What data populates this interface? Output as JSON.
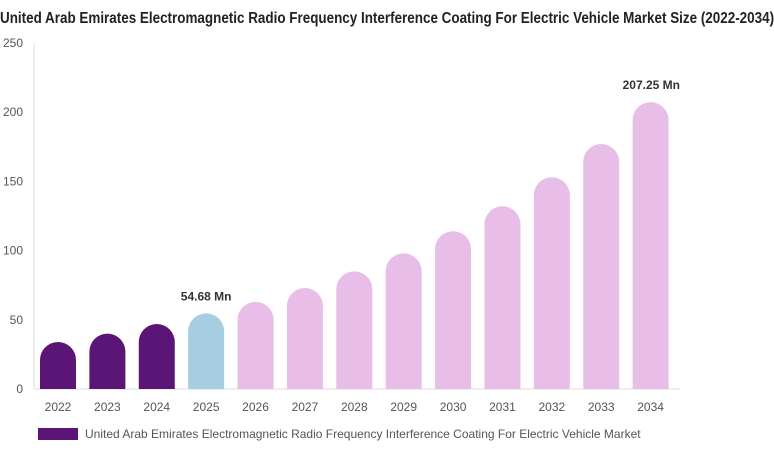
{
  "chart_data": {
    "type": "bar",
    "title": "United Arab Emirates Electromagnetic Radio Frequency Interference Coating For Electric Vehicle Market Size (2022-2034)",
    "categories": [
      "2022",
      "2023",
      "2024",
      "2025",
      "2026",
      "2027",
      "2028",
      "2029",
      "2030",
      "2031",
      "2032",
      "2033",
      "2034"
    ],
    "series": [
      {
        "name": "United Arab Emirates Electromagnetic Radio Frequency Interference Coating For Electric Vehicle Market",
        "values": [
          34,
          40,
          47,
          54.68,
          63,
          73,
          85,
          98,
          114,
          132,
          153,
          177,
          207.25
        ]
      }
    ],
    "ylim": [
      0,
      250
    ],
    "yticks": [
      0,
      50,
      100,
      150,
      200,
      250
    ],
    "grid": false,
    "legend_position": "bottom-left",
    "annotations": [
      {
        "category": "2025",
        "text": "54.68 Mn"
      },
      {
        "category": "2034",
        "text": "207.25 Mn"
      }
    ],
    "colors": {
      "historical": "#5a1577",
      "base_year": "#a6cde0",
      "forecast": "#e8bde8",
      "legend": "#5a1577",
      "axis": "#dddddd",
      "tick_text": "#555555",
      "annotation_text": "#333333"
    },
    "bar_color_groups": [
      "historical",
      "historical",
      "historical",
      "base_year",
      "forecast",
      "forecast",
      "forecast",
      "forecast",
      "forecast",
      "forecast",
      "forecast",
      "forecast",
      "forecast"
    ]
  }
}
